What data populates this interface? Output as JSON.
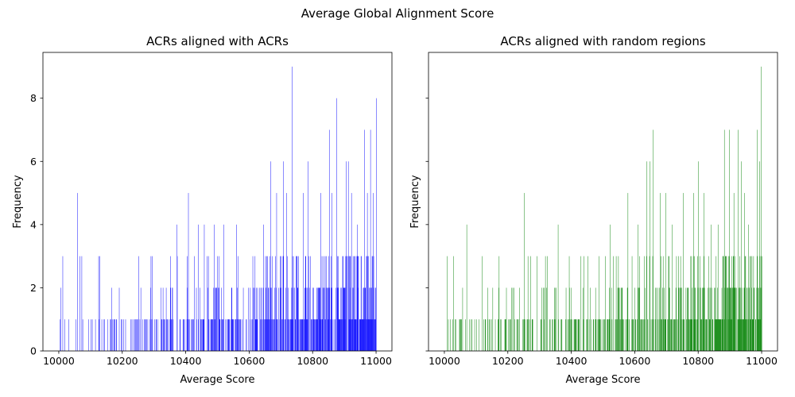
{
  "suptitle": "Average Global Alignment Score",
  "chart_data": [
    {
      "type": "bar",
      "title": "ACRs aligned with ACRs",
      "xlabel": "Average Score",
      "ylabel": "Frequency",
      "xlim": [
        9950,
        11050
      ],
      "ylim": [
        0,
        9.45
      ],
      "xticks": [
        10000,
        10200,
        10400,
        10600,
        10800,
        11000
      ],
      "yticks": [
        0,
        2,
        4,
        6,
        8
      ],
      "color": "#0000ff",
      "bin_width": 1,
      "bins_start": 10000,
      "seed": 7,
      "highlights": [
        {
          "x": 10012,
          "y": 3
        },
        {
          "x": 10058,
          "y": 5
        },
        {
          "x": 10066,
          "y": 3
        },
        {
          "x": 10072,
          "y": 3
        },
        {
          "x": 10128,
          "y": 3
        },
        {
          "x": 10166,
          "y": 2
        },
        {
          "x": 10252,
          "y": 3
        },
        {
          "x": 10290,
          "y": 3
        },
        {
          "x": 10294,
          "y": 3
        },
        {
          "x": 10372,
          "y": 4
        },
        {
          "x": 10408,
          "y": 5
        },
        {
          "x": 10440,
          "y": 4
        },
        {
          "x": 10458,
          "y": 4
        },
        {
          "x": 10490,
          "y": 4
        },
        {
          "x": 10520,
          "y": 4
        },
        {
          "x": 10560,
          "y": 4
        },
        {
          "x": 10645,
          "y": 4
        },
        {
          "x": 10668,
          "y": 6
        },
        {
          "x": 10686,
          "y": 5
        },
        {
          "x": 10708,
          "y": 6
        },
        {
          "x": 10718,
          "y": 5
        },
        {
          "x": 10735,
          "y": 9
        },
        {
          "x": 10770,
          "y": 5
        },
        {
          "x": 10785,
          "y": 6
        },
        {
          "x": 10825,
          "y": 5
        },
        {
          "x": 10852,
          "y": 7
        },
        {
          "x": 10860,
          "y": 5
        },
        {
          "x": 10875,
          "y": 8
        },
        {
          "x": 10905,
          "y": 6
        },
        {
          "x": 10912,
          "y": 6
        },
        {
          "x": 10922,
          "y": 5
        },
        {
          "x": 10940,
          "y": 4
        },
        {
          "x": 10963,
          "y": 7
        },
        {
          "x": 10972,
          "y": 5
        },
        {
          "x": 10982,
          "y": 7
        },
        {
          "x": 10990,
          "y": 5
        },
        {
          "x": 11000,
          "y": 8
        }
      ]
    },
    {
      "type": "bar",
      "title": "ACRs aligned with random regions",
      "xlabel": "Average Score",
      "ylabel": "Frequency",
      "xlim": [
        9950,
        11050
      ],
      "ylim": [
        0,
        9.45
      ],
      "xticks": [
        10000,
        10200,
        10400,
        10600,
        10800,
        11000
      ],
      "yticks": [
        0,
        2,
        4,
        6,
        8
      ],
      "color": "#008000",
      "bin_width": 1,
      "bins_start": 10000,
      "seed": 23,
      "highlights": [
        {
          "x": 10008,
          "y": 3
        },
        {
          "x": 10028,
          "y": 3
        },
        {
          "x": 10070,
          "y": 4
        },
        {
          "x": 10118,
          "y": 3
        },
        {
          "x": 10252,
          "y": 5
        },
        {
          "x": 10272,
          "y": 3
        },
        {
          "x": 10292,
          "y": 3
        },
        {
          "x": 10318,
          "y": 3
        },
        {
          "x": 10358,
          "y": 4
        },
        {
          "x": 10430,
          "y": 3
        },
        {
          "x": 10440,
          "y": 3
        },
        {
          "x": 10452,
          "y": 3
        },
        {
          "x": 10522,
          "y": 4
        },
        {
          "x": 10548,
          "y": 3
        },
        {
          "x": 10578,
          "y": 5
        },
        {
          "x": 10610,
          "y": 4
        },
        {
          "x": 10638,
          "y": 6
        },
        {
          "x": 10648,
          "y": 6
        },
        {
          "x": 10658,
          "y": 7
        },
        {
          "x": 10680,
          "y": 5
        },
        {
          "x": 10698,
          "y": 5
        },
        {
          "x": 10718,
          "y": 4
        },
        {
          "x": 10752,
          "y": 5
        },
        {
          "x": 10785,
          "y": 5
        },
        {
          "x": 10800,
          "y": 6
        },
        {
          "x": 10818,
          "y": 5
        },
        {
          "x": 10840,
          "y": 4
        },
        {
          "x": 10862,
          "y": 4
        },
        {
          "x": 10882,
          "y": 7
        },
        {
          "x": 10898,
          "y": 7
        },
        {
          "x": 10912,
          "y": 5
        },
        {
          "x": 10925,
          "y": 7
        },
        {
          "x": 10935,
          "y": 6
        },
        {
          "x": 10945,
          "y": 5
        },
        {
          "x": 10958,
          "y": 4
        },
        {
          "x": 10985,
          "y": 7
        },
        {
          "x": 10993,
          "y": 6
        },
        {
          "x": 10998,
          "y": 9
        }
      ]
    }
  ]
}
